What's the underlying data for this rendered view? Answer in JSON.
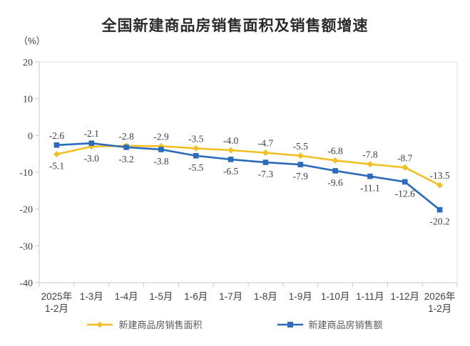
{
  "page": {
    "background": "#ffffff"
  },
  "chart_data": {
    "type": "line",
    "title": "全国新建商品房销售面积及销售额增速",
    "unit_label": "（%）",
    "categories": [
      "2025年\n1-2月",
      "1-3月",
      "1-4月",
      "1-5月",
      "1-6月",
      "1-7月",
      "1-8月",
      "1-9月",
      "1-10月",
      "1-11月",
      "1-12月",
      "2026年\n1-2月"
    ],
    "series": [
      {
        "name": "新建商品房销售面积",
        "color": "#F3BF22",
        "marker": "diamond",
        "values": [
          -5.1,
          -3.0,
          -2.8,
          -2.9,
          -3.5,
          -4.0,
          -4.7,
          -5.5,
          -6.8,
          -7.8,
          -8.7,
          -13.5
        ]
      },
      {
        "name": "新建商品房销售额",
        "color": "#2A6BBB",
        "marker": "square",
        "values": [
          -2.6,
          -2.1,
          -3.2,
          -3.8,
          -5.5,
          -6.5,
          -7.3,
          -7.9,
          -9.6,
          -11.1,
          -12.6,
          -20.2
        ]
      }
    ],
    "ylim": [
      -40,
      20
    ],
    "yticks": [
      20,
      10,
      0,
      -10,
      -20,
      -30,
      -40
    ],
    "grid": false,
    "data_labels": true,
    "legend_position": "bottom",
    "axis_color": "#c9c9c9",
    "border_color": "#dedede",
    "tick_label_color": "#404040",
    "data_label_color": "#3f3f3f"
  }
}
